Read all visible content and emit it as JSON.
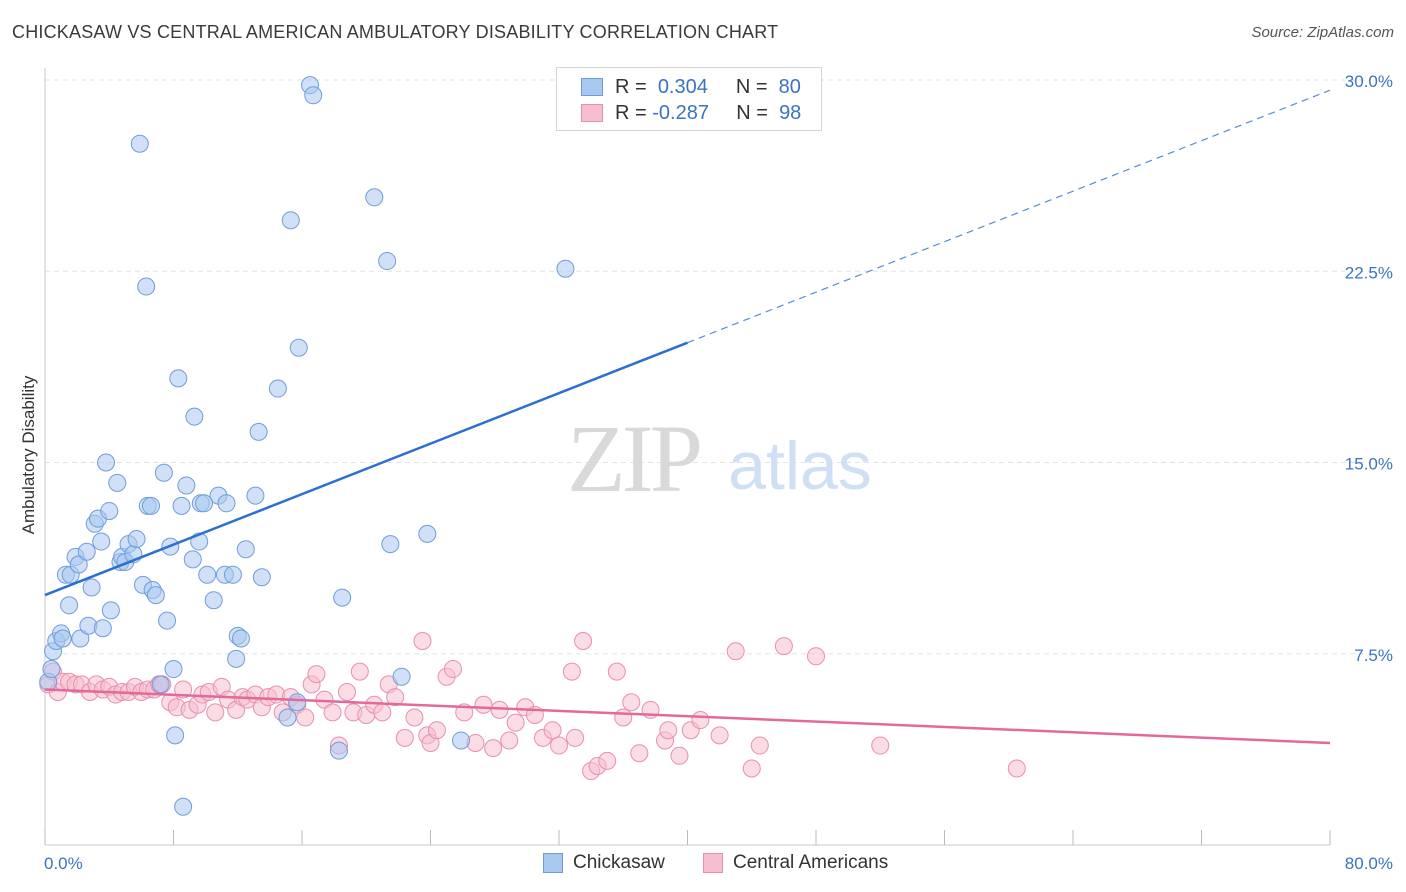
{
  "title": "CHICKASAW VS CENTRAL AMERICAN AMBULATORY DISABILITY CORRELATION CHART",
  "source": "Source: ZipAtlas.com",
  "watermark": {
    "zip": "ZIP",
    "atlas": "atlas"
  },
  "legend": {
    "rows": [
      {
        "r_label": "R =",
        "r_value": "0.304",
        "n_label": "N =",
        "n_value": "80"
      },
      {
        "r_label": "R =",
        "r_value": "-0.287",
        "n_label": "N =",
        "n_value": "98"
      }
    ],
    "bottom": [
      "Chickasaw",
      "Central Americans"
    ]
  },
  "colors": {
    "chickasaw_fill": "#a9c8f0",
    "chickasaw_stroke": "#6f9ddb",
    "chickasaw_line": "#2b6fcf",
    "central_fill": "#f6bfd0",
    "central_stroke": "#e98fae",
    "central_line": "#e2699a",
    "tick_label": "#3b73c4",
    "grid": "#e3e3e3"
  },
  "chart_data": {
    "type": "scatter",
    "title": "CHICKASAW VS CENTRAL AMERICAN AMBULATORY DISABILITY CORRELATION CHART",
    "xlabel": "",
    "ylabel": "Ambulatory Disability",
    "xlim": [
      0,
      80
    ],
    "ylim": [
      0,
      30
    ],
    "x_tick_labels": [
      "0.0%",
      "80.0%"
    ],
    "y_ticks": [
      7.5,
      15.0,
      22.5,
      30.0
    ],
    "y_tick_labels": [
      "7.5%",
      "15.0%",
      "22.5%",
      "30.0%"
    ],
    "grid": true,
    "legend_position": "top-center",
    "series": [
      {
        "name": "Chickasaw",
        "r": 0.304,
        "n": 80,
        "trend": {
          "x": [
            0,
            40
          ],
          "y": [
            9.8,
            19.7
          ],
          "dashed_to": [
            80,
            29.6
          ]
        },
        "points": [
          [
            0.2,
            6.4
          ],
          [
            0.4,
            6.9
          ],
          [
            0.5,
            7.6
          ],
          [
            0.7,
            8.0
          ],
          [
            1.0,
            8.3
          ],
          [
            1.1,
            8.1
          ],
          [
            1.3,
            10.6
          ],
          [
            1.5,
            9.4
          ],
          [
            1.6,
            10.6
          ],
          [
            1.9,
            11.3
          ],
          [
            2.1,
            11.0
          ],
          [
            2.2,
            8.1
          ],
          [
            2.6,
            11.5
          ],
          [
            2.7,
            8.6
          ],
          [
            2.9,
            10.1
          ],
          [
            3.1,
            12.6
          ],
          [
            3.3,
            12.8
          ],
          [
            3.5,
            11.9
          ],
          [
            3.6,
            8.5
          ],
          [
            3.8,
            15.0
          ],
          [
            4.0,
            13.1
          ],
          [
            4.1,
            9.2
          ],
          [
            4.5,
            14.2
          ],
          [
            4.7,
            11.1
          ],
          [
            4.8,
            11.3
          ],
          [
            5.0,
            11.1
          ],
          [
            5.2,
            11.8
          ],
          [
            5.5,
            11.4
          ],
          [
            5.7,
            12.0
          ],
          [
            5.9,
            27.5
          ],
          [
            6.1,
            10.2
          ],
          [
            6.3,
            21.9
          ],
          [
            6.4,
            13.3
          ],
          [
            6.6,
            13.3
          ],
          [
            6.7,
            10.0
          ],
          [
            6.9,
            9.8
          ],
          [
            7.2,
            6.3
          ],
          [
            7.4,
            14.6
          ],
          [
            7.6,
            8.8
          ],
          [
            7.8,
            11.7
          ],
          [
            8.0,
            6.9
          ],
          [
            8.1,
            4.3
          ],
          [
            8.3,
            18.3
          ],
          [
            8.5,
            13.3
          ],
          [
            8.6,
            1.5
          ],
          [
            8.8,
            14.1
          ],
          [
            9.2,
            11.2
          ],
          [
            9.3,
            16.8
          ],
          [
            9.6,
            11.9
          ],
          [
            9.7,
            13.4
          ],
          [
            10.1,
            10.6
          ],
          [
            10.5,
            9.6
          ],
          [
            10.8,
            13.7
          ],
          [
            11.2,
            10.6
          ],
          [
            11.3,
            13.4
          ],
          [
            11.7,
            10.6
          ],
          [
            11.9,
            7.3
          ],
          [
            12.0,
            8.2
          ],
          [
            12.2,
            8.1
          ],
          [
            12.5,
            11.6
          ],
          [
            13.1,
            13.7
          ],
          [
            13.3,
            16.2
          ],
          [
            13.5,
            10.5
          ],
          [
            14.5,
            17.9
          ],
          [
            15.1,
            5.0
          ],
          [
            15.3,
            24.5
          ],
          [
            15.7,
            5.6
          ],
          [
            15.8,
            19.5
          ],
          [
            16.5,
            29.8
          ],
          [
            16.7,
            29.4
          ],
          [
            18.3,
            3.7
          ],
          [
            18.5,
            9.7
          ],
          [
            20.5,
            25.4
          ],
          [
            21.3,
            22.9
          ],
          [
            21.5,
            11.8
          ],
          [
            22.2,
            6.6
          ],
          [
            23.8,
            12.2
          ],
          [
            25.9,
            4.1
          ],
          [
            32.4,
            22.6
          ],
          [
            9.9,
            13.4
          ]
        ]
      },
      {
        "name": "Central Americans",
        "r": -0.287,
        "n": 98,
        "trend": {
          "x": [
            0,
            80
          ],
          "y": [
            6.1,
            4.0
          ]
        },
        "points": [
          [
            0.2,
            6.3
          ],
          [
            0.5,
            6.8
          ],
          [
            0.8,
            6.0
          ],
          [
            1.1,
            6.4
          ],
          [
            1.5,
            6.4
          ],
          [
            1.9,
            6.3
          ],
          [
            2.3,
            6.3
          ],
          [
            2.8,
            6.0
          ],
          [
            3.2,
            6.3
          ],
          [
            3.6,
            6.1
          ],
          [
            4.0,
            6.2
          ],
          [
            4.4,
            5.9
          ],
          [
            4.8,
            6.0
          ],
          [
            5.2,
            6.0
          ],
          [
            5.6,
            6.2
          ],
          [
            6.0,
            6.0
          ],
          [
            6.4,
            6.1
          ],
          [
            6.8,
            6.1
          ],
          [
            7.1,
            6.3
          ],
          [
            7.3,
            6.3
          ],
          [
            7.8,
            5.6
          ],
          [
            8.2,
            5.4
          ],
          [
            8.6,
            6.1
          ],
          [
            9.0,
            5.3
          ],
          [
            9.5,
            5.5
          ],
          [
            9.8,
            5.9
          ],
          [
            10.2,
            6.0
          ],
          [
            10.6,
            5.2
          ],
          [
            11.0,
            6.2
          ],
          [
            11.4,
            5.7
          ],
          [
            11.9,
            5.3
          ],
          [
            12.3,
            5.8
          ],
          [
            12.6,
            5.7
          ],
          [
            13.1,
            5.9
          ],
          [
            13.5,
            5.4
          ],
          [
            13.9,
            5.8
          ],
          [
            14.4,
            5.9
          ],
          [
            14.8,
            5.2
          ],
          [
            15.3,
            5.8
          ],
          [
            15.7,
            5.5
          ],
          [
            16.2,
            5.0
          ],
          [
            16.6,
            6.3
          ],
          [
            16.9,
            6.7
          ],
          [
            17.4,
            5.7
          ],
          [
            17.9,
            5.2
          ],
          [
            18.3,
            3.9
          ],
          [
            18.8,
            6.0
          ],
          [
            19.2,
            5.2
          ],
          [
            19.6,
            6.8
          ],
          [
            20.0,
            5.1
          ],
          [
            20.5,
            5.5
          ],
          [
            21.0,
            5.2
          ],
          [
            21.4,
            6.3
          ],
          [
            21.8,
            5.8
          ],
          [
            22.4,
            4.2
          ],
          [
            23.0,
            5.0
          ],
          [
            23.5,
            8.0
          ],
          [
            23.8,
            4.3
          ],
          [
            24.0,
            4.0
          ],
          [
            24.4,
            4.5
          ],
          [
            25.0,
            6.6
          ],
          [
            25.4,
            6.9
          ],
          [
            26.1,
            5.2
          ],
          [
            26.8,
            4.0
          ],
          [
            27.3,
            5.5
          ],
          [
            27.9,
            3.8
          ],
          [
            28.3,
            5.3
          ],
          [
            28.9,
            4.1
          ],
          [
            29.3,
            4.8
          ],
          [
            29.9,
            5.4
          ],
          [
            30.5,
            5.1
          ],
          [
            31.0,
            4.2
          ],
          [
            31.6,
            4.5
          ],
          [
            32.0,
            3.9
          ],
          [
            32.8,
            6.8
          ],
          [
            33.0,
            4.2
          ],
          [
            33.5,
            8.0
          ],
          [
            34.0,
            2.9
          ],
          [
            34.4,
            3.1
          ],
          [
            35.0,
            3.3
          ],
          [
            35.6,
            6.8
          ],
          [
            36.0,
            5.0
          ],
          [
            36.5,
            5.6
          ],
          [
            37.0,
            3.6
          ],
          [
            37.7,
            5.3
          ],
          [
            38.6,
            4.1
          ],
          [
            38.8,
            4.5
          ],
          [
            39.5,
            3.5
          ],
          [
            40.2,
            4.5
          ],
          [
            40.8,
            4.9
          ],
          [
            42.0,
            4.3
          ],
          [
            43.0,
            7.6
          ],
          [
            44.0,
            3.0
          ],
          [
            44.5,
            3.9
          ],
          [
            46.0,
            7.8
          ],
          [
            48.0,
            7.4
          ],
          [
            52.0,
            3.9
          ],
          [
            60.5,
            3.0
          ]
        ]
      }
    ]
  }
}
